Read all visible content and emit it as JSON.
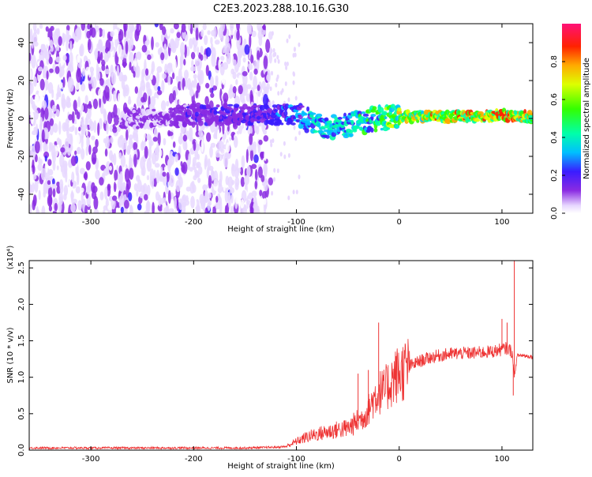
{
  "title": "C2E3.2023.288.10.16.G30",
  "chart_data": [
    {
      "type": "heatmap",
      "xlabel": "Height of straight line (km)",
      "ylabel": "Frequency (Hz)",
      "xlim": [
        -360,
        130
      ],
      "ylim": [
        -50,
        50
      ],
      "x_ticks": [
        -300,
        -200,
        -100,
        0,
        100
      ],
      "y_ticks": [
        -40,
        -20,
        0,
        20,
        40
      ],
      "grid": false,
      "noise_region_x": [
        -360,
        -125
      ],
      "signal_ridge": {
        "x": [
          -360,
          -250,
          -200,
          -150,
          -100,
          -80,
          -60,
          -40,
          -20,
          0,
          40,
          80,
          100,
          110,
          130
        ],
        "frequency_hz": [
          0,
          0,
          2,
          2,
          2,
          -3,
          -5,
          -2,
          0,
          1,
          1,
          1,
          2,
          1,
          1
        ],
        "peak_amplitude": [
          0.1,
          0.15,
          0.22,
          0.25,
          0.35,
          0.45,
          0.5,
          0.5,
          0.6,
          0.75,
          0.85,
          0.85,
          0.9,
          0.9,
          0.85
        ]
      }
    },
    {
      "type": "colorbar",
      "label": "Normalized spectral amplitude",
      "range": [
        0.0,
        1.0
      ],
      "ticks": [
        "0.0",
        "0.2",
        "0.4",
        "0.6",
        "0.8"
      ]
    },
    {
      "type": "line",
      "xlabel": "Height of straight line (km)",
      "ylabel": "SNR (10 * v/v)",
      "y_multiplier": "(x10⁴)",
      "xlim": [
        -360,
        130
      ],
      "ylim": [
        0,
        2.6
      ],
      "x_ticks": [
        -300,
        -200,
        -100,
        0,
        100
      ],
      "y_ticks": [
        "0.0",
        "0.5",
        "1.0",
        "1.5",
        "2.0",
        "2.5"
      ],
      "grid": false,
      "series": [
        {
          "color": "#ee3333",
          "x": [
            -360,
            -300,
            -200,
            -150,
            -120,
            -110,
            -100,
            -90,
            -80,
            -70,
            -60,
            -50,
            -45,
            -40,
            -35,
            -30,
            -25,
            -20,
            -15,
            -10,
            -5,
            0,
            10,
            20,
            30,
            40,
            50,
            60,
            70,
            80,
            90,
            100,
            105,
            110,
            112,
            115,
            120,
            130
          ],
          "y": [
            0.03,
            0.03,
            0.03,
            0.03,
            0.04,
            0.05,
            0.12,
            0.18,
            0.22,
            0.25,
            0.28,
            0.3,
            0.35,
            0.4,
            0.45,
            0.55,
            0.7,
            0.8,
            0.8,
            0.9,
            1.0,
            1.05,
            1.15,
            1.22,
            1.27,
            1.3,
            1.32,
            1.33,
            1.33,
            1.34,
            1.35,
            1.38,
            1.4,
            1.35,
            1.0,
            1.3,
            1.3,
            1.28
          ],
          "spikes": [
            [
              -20,
              1.75
            ],
            [
              -30,
              1.1
            ],
            [
              -40,
              1.05
            ],
            [
              100,
              1.8
            ],
            [
              105,
              1.75
            ],
            [
              112,
              2.6
            ],
            [
              111,
              0.75
            ]
          ]
        }
      ]
    }
  ]
}
